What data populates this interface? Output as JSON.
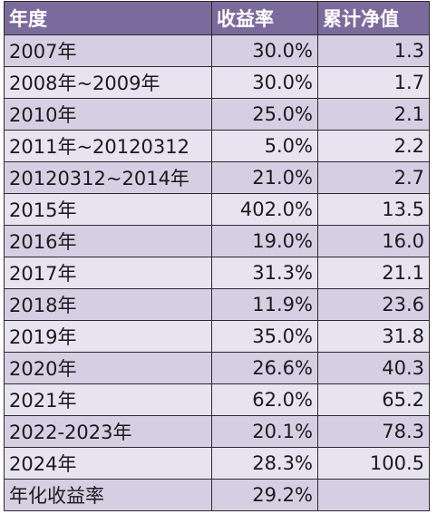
{
  "table": {
    "header": [
      "年度",
      "收益率",
      "累计净值"
    ],
    "rows": [
      [
        "2007年",
        "30.0%",
        "1.3"
      ],
      [
        "2008年~2009年",
        "30.0%",
        "1.7"
      ],
      [
        "2010年",
        "25.0%",
        "2.1"
      ],
      [
        "2011年~20120312",
        "5.0%",
        "2.2"
      ],
      [
        "20120312~2014年",
        "21.0%",
        "2.7"
      ],
      [
        "2015年",
        "402.0%",
        "13.5"
      ],
      [
        "2016年",
        "19.0%",
        "16.0"
      ],
      [
        "2017年",
        "31.3%",
        "21.1"
      ],
      [
        "2018年",
        "11.9%",
        "23.6"
      ],
      [
        "2019年",
        "35.0%",
        "31.8"
      ],
      [
        "2020年",
        "26.6%",
        "40.3"
      ],
      [
        "2021年",
        "62.0%",
        "65.2"
      ],
      [
        "2022-2023年",
        "20.1%",
        "78.3"
      ],
      [
        "2024年",
        "28.3%",
        "100.5"
      ],
      [
        "年化收益率",
        "29.2%"
      ]
    ]
  }
}
